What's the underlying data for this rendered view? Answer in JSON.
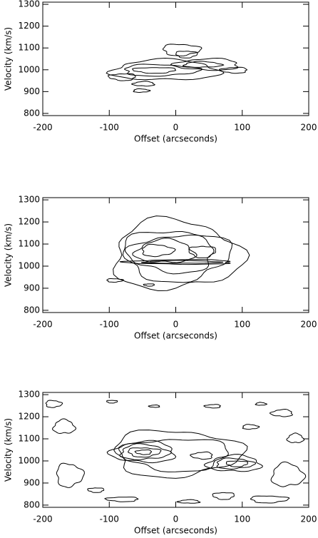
{
  "chart_data": [
    {
      "type": "contour",
      "xlabel": "Offset (arcseconds)",
      "ylabel": "Velocity (km/s)",
      "xlim": [
        -200,
        200
      ],
      "ylim": [
        790,
        1310
      ],
      "xticks": [
        -200,
        -100,
        0,
        100,
        200
      ],
      "yticks": [
        800,
        900,
        1000,
        1100,
        1200,
        1300
      ],
      "color": "#000000"
    },
    {
      "type": "contour",
      "xlabel": "Offset (arcseconds)",
      "ylabel": "Velocity (km/s)",
      "xlim": [
        -200,
        200
      ],
      "ylim": [
        790,
        1310
      ],
      "xticks": [
        -200,
        -100,
        0,
        100,
        200
      ],
      "yticks": [
        800,
        900,
        1000,
        1100,
        1200,
        1300
      ],
      "color": "#000000"
    },
    {
      "type": "contour",
      "xlabel": "Offset (arcseconds)",
      "ylabel": "Velocity (km/s)",
      "xlim": [
        -200,
        200
      ],
      "ylim": [
        790,
        1310
      ],
      "xticks": [
        -200,
        -100,
        0,
        100,
        200
      ],
      "yticks": [
        800,
        900,
        1000,
        1100,
        1200,
        1300
      ],
      "color": "#000000"
    }
  ]
}
